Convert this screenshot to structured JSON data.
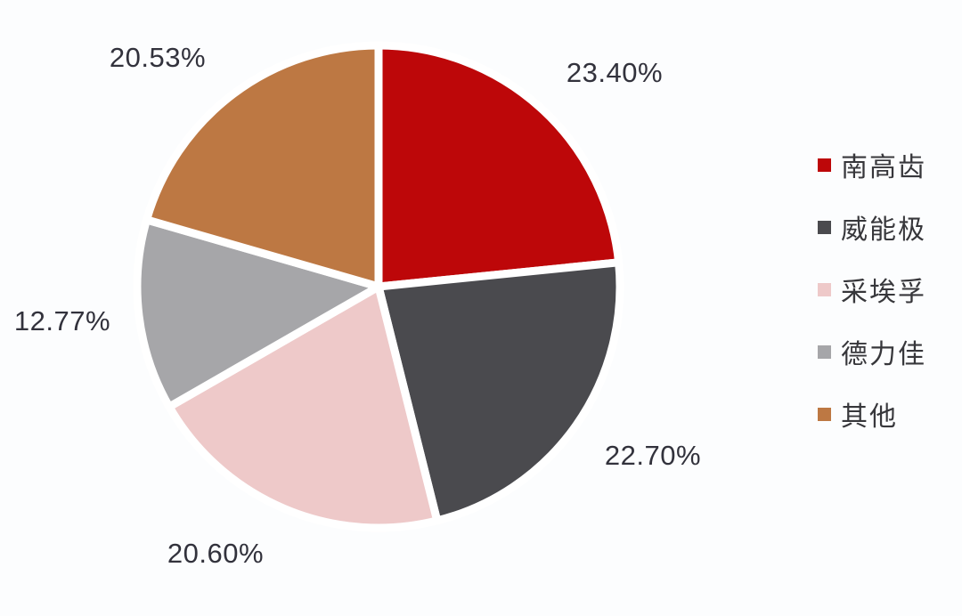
{
  "chart_data": {
    "type": "pie",
    "title": "",
    "direction": "clockwise",
    "start_angle_deg": 0,
    "legend_position": "right",
    "data_labels": "percent-outside",
    "total": 100.0,
    "slices": [
      {
        "label": "南高齿",
        "value": 23.4,
        "display": "23.40%",
        "color": "#BD0709"
      },
      {
        "label": "威能极",
        "value": 22.7,
        "display": "22.70%",
        "color": "#4A4A4E"
      },
      {
        "label": "采埃孚",
        "value": 20.6,
        "display": "20.60%",
        "color": "#EEC9C9"
      },
      {
        "label": "德力佳",
        "value": 12.77,
        "display": "12.77%",
        "color": "#A6A6A9"
      },
      {
        "label": "其他",
        "value": 20.53,
        "display": "20.53%",
        "color": "#BD7843"
      }
    ]
  },
  "colors": {
    "background": "#FCFDFE",
    "slice_border": "#FFFFFF",
    "data_label_text": "#32323C",
    "legend_text": "#37373B"
  }
}
